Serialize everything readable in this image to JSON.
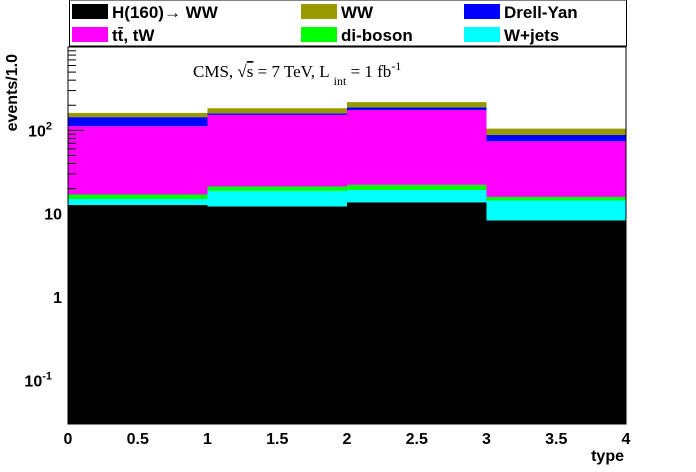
{
  "chart_data": {
    "type": "bar",
    "stacked": true,
    "log_y": true,
    "xlabel": "type",
    "ylabel": "events/1.0",
    "xlim": [
      0,
      4
    ],
    "ylim": [
      0.03,
      1000
    ],
    "x_ticks": [
      "0",
      "0.5",
      "1",
      "1.5",
      "2",
      "2.5",
      "3",
      "3.5",
      "4"
    ],
    "y_ticks": [
      {
        "label": "10",
        "sup": "-1",
        "value": 0.1
      },
      {
        "label": "1",
        "sup": "",
        "value": 1
      },
      {
        "label": "10",
        "sup": "",
        "value": 10
      },
      {
        "label": "10",
        "sup": "2",
        "value": 100
      }
    ],
    "annotation": {
      "experiment": "CMS, ",
      "sqrt_s": "s",
      "energy": " = 7 TeV, L",
      "lumi_sub": "int",
      "lumi": " = 1 fb",
      "lumi_sup": "-1"
    },
    "bins": [
      [
        0,
        1
      ],
      [
        1,
        2
      ],
      [
        2,
        3
      ],
      [
        3,
        4
      ]
    ],
    "series": [
      {
        "name": "H(160)→ WW",
        "color": "#000000",
        "values": [
          12.7,
          12.2,
          13.7,
          8.3
        ]
      },
      {
        "name": "W+jets",
        "color": "#00ffff",
        "values": [
          2.3,
          6.6,
          5.5,
          6.1
        ]
      },
      {
        "name": "di-boson",
        "color": "#00ff00",
        "values": [
          2.0,
          2.4,
          3.0,
          1.5
        ]
      },
      {
        "name": "tt̄, tW",
        "color": "#ff00ff",
        "values": [
          95,
          132,
          153,
          58
        ]
      },
      {
        "name": "Drell-Yan",
        "color": "#0000ff",
        "values": [
          32,
          7,
          13,
          14
        ]
      },
      {
        "name": "WW",
        "color": "#999900",
        "values": [
          18,
          24,
          30,
          17
        ]
      }
    ],
    "legend": {
      "placement": "top",
      "entries": [
        {
          "label": "H(160)→ WW",
          "color": "#000000"
        },
        {
          "label": "WW",
          "color": "#999900"
        },
        {
          "label": "Drell-Yan",
          "color": "#0000ff"
        },
        {
          "label": "tt̄, tW",
          "color": "#ff00ff"
        },
        {
          "label": "di-boson",
          "color": "#00ff00"
        },
        {
          "label": "W+jets",
          "color": "#00ffff"
        }
      ]
    }
  }
}
